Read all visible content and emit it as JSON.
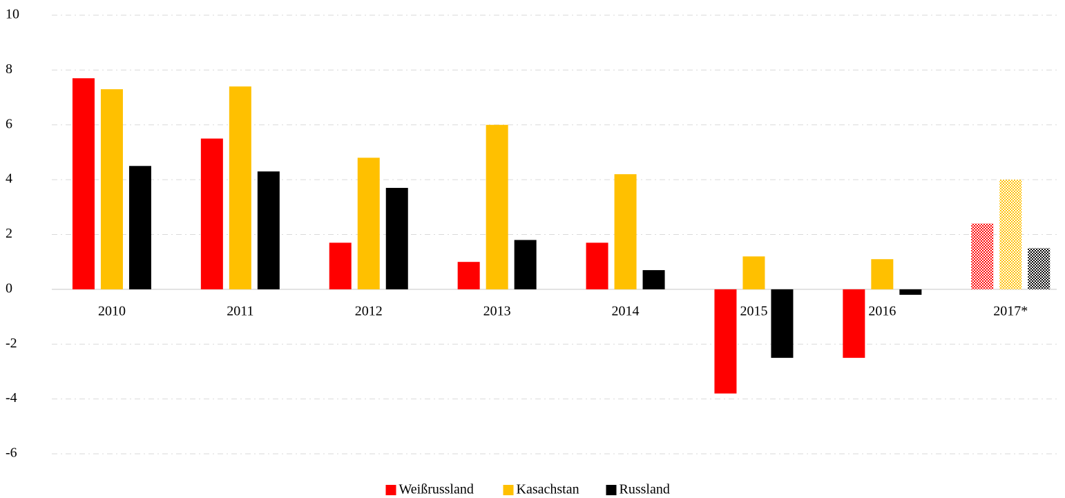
{
  "chart_data": {
    "type": "bar",
    "categories": [
      "2010",
      "2011",
      "2012",
      "2013",
      "2014",
      "2015",
      "2016",
      "2017*"
    ],
    "series": [
      {
        "name": "Weißrussland",
        "color": "#ff0000",
        "values": [
          7.7,
          5.5,
          1.7,
          1.0,
          1.7,
          -3.8,
          -2.5,
          2.4
        ]
      },
      {
        "name": "Kasachstan",
        "color": "#ffc000",
        "values": [
          7.3,
          7.4,
          4.8,
          6.0,
          4.2,
          1.2,
          1.1,
          4.0
        ]
      },
      {
        "name": "Russland",
        "color": "#000000",
        "values": [
          4.5,
          4.3,
          3.7,
          1.8,
          0.7,
          -2.5,
          -0.2,
          1.5
        ]
      }
    ],
    "ylim": [
      -6,
      10
    ],
    "yticks": [
      -6,
      -4,
      -2,
      0,
      2,
      4,
      6,
      8,
      10
    ],
    "grid": true,
    "legend": "bottom"
  }
}
